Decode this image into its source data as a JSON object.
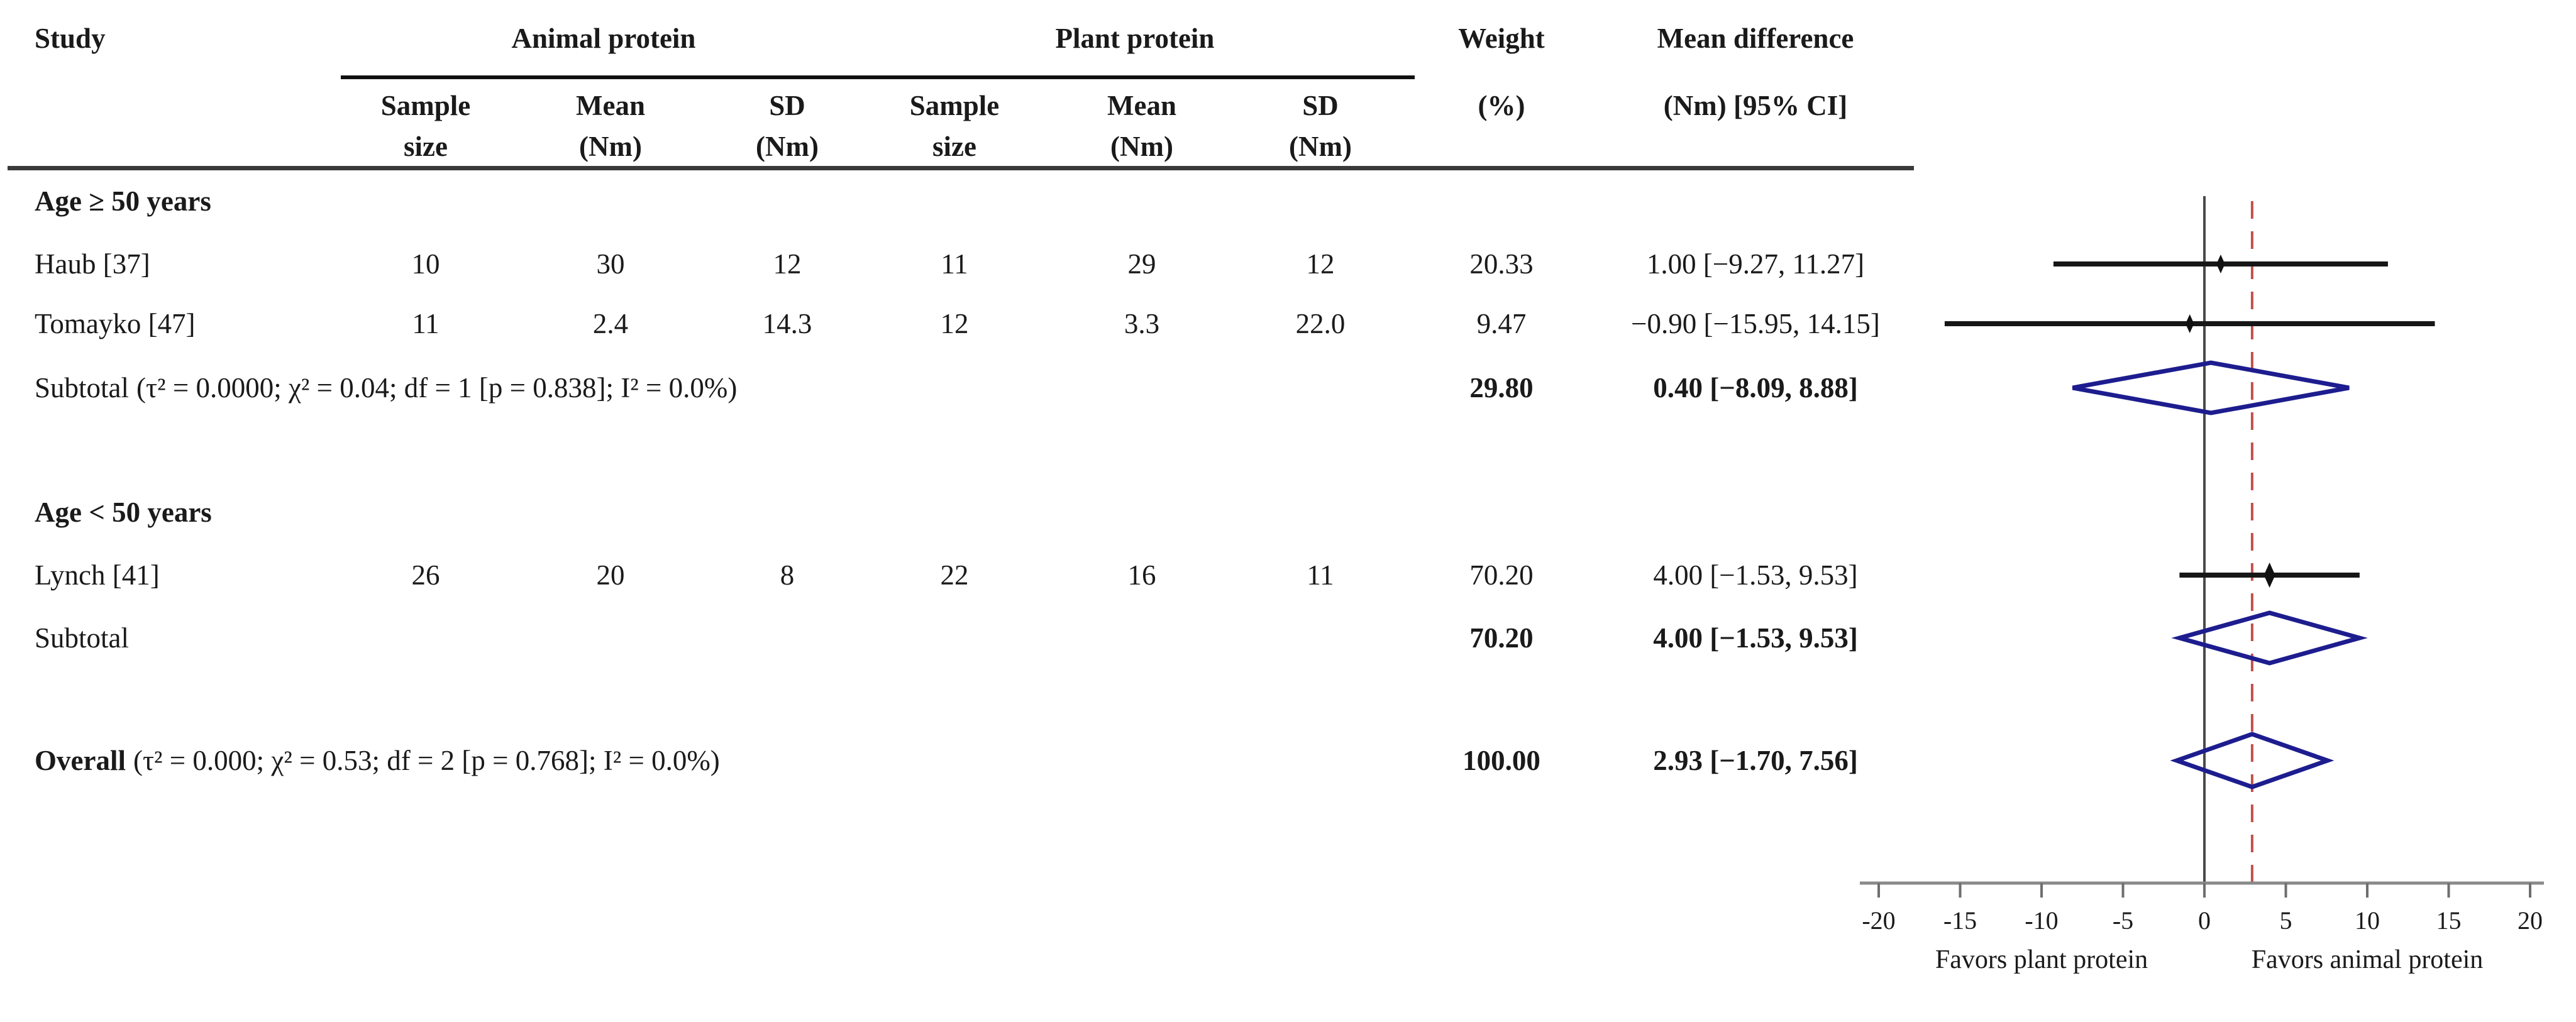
{
  "figure": {
    "kind": "meta-analysis forest plot",
    "colors": {
      "ci_line": "#161616",
      "marker": "#111111",
      "diamond_outline": "#1d1d8f",
      "reference_line": "#c0504d",
      "zero_line": "#4a4a4a",
      "axis": "#8a8a8a",
      "tick": "#6e6e6e",
      "text": "#1a1a1a"
    }
  },
  "table": {
    "header": {
      "study": "Study",
      "animal_group": "Animal protein",
      "plant_group": "Plant protein",
      "weight_line1": "Weight",
      "weight_line2": "(%)",
      "md_line1": "Mean difference",
      "md_line2": "(Nm) [95% CI]",
      "sub_sample": "Sample",
      "sub_size": "size",
      "sub_mean": "Mean",
      "sub_nm": "(Nm)",
      "sub_sd": "SD"
    },
    "rows": [
      {
        "type": "section",
        "label": "Age ≥ 50 years"
      },
      {
        "type": "study",
        "label": "Haub [37]",
        "animal_n": "10",
        "animal_mean": "30",
        "animal_sd": "12",
        "plant_n": "11",
        "plant_mean": "29",
        "plant_sd": "12",
        "weight": "20.33",
        "md": "1.00 [−9.27, 11.27]"
      },
      {
        "type": "study",
        "label": "Tomayko [47]",
        "animal_n": "11",
        "animal_mean": "2.4",
        "animal_sd": "14.3",
        "plant_n": "12",
        "plant_mean": "3.3",
        "plant_sd": "22.0",
        "weight": "9.47",
        "md": "−0.90 [−15.95, 14.15]"
      },
      {
        "type": "subtotal",
        "label": "Subtotal",
        "stats": "(τ² = 0.0000; χ² = 0.04; df = 1 [p = 0.838]; I² = 0.0%)",
        "weight": "29.80",
        "md": "0.40 [−8.09, 8.88]"
      },
      {
        "type": "section",
        "label": "Age < 50 years"
      },
      {
        "type": "study",
        "label": "Lynch [41]",
        "animal_n": "26",
        "animal_mean": "20",
        "animal_sd": "8",
        "plant_n": "22",
        "plant_mean": "16",
        "plant_sd": "11",
        "weight": "70.20",
        "md": "4.00 [−1.53, 9.53]"
      },
      {
        "type": "subtotal",
        "label": "Subtotal",
        "stats": "",
        "weight": "70.20",
        "md": "4.00 [−1.53, 9.53]"
      },
      {
        "type": "overall",
        "label": "Overall",
        "stats": "(τ² = 0.000; χ² = 0.53; df = 2 [p = 0.768]; I² = 0.0%)",
        "weight": "100.00",
        "md": "2.93 [−1.70, 7.56]"
      }
    ]
  },
  "chart_data": {
    "type": "forest",
    "x_axis": {
      "min": -20,
      "max": 20,
      "ticks": [
        -20,
        -15,
        -10,
        -5,
        0,
        5,
        10,
        15,
        20
      ],
      "label_left": "Favors plant protein",
      "label_right": "Favors animal protein"
    },
    "zero_line": 0,
    "reference_line": 2.93,
    "rows": [
      {
        "kind": "study",
        "label": "Haub [37]",
        "estimate": 1.0,
        "ci": [
          -9.27,
          11.27
        ],
        "weight_pct": 20.33
      },
      {
        "kind": "study",
        "label": "Tomayko [47]",
        "estimate": -0.9,
        "ci": [
          -15.95,
          14.15
        ],
        "weight_pct": 9.47
      },
      {
        "kind": "summary",
        "label": "Subtotal",
        "estimate": 0.4,
        "ci": [
          -8.09,
          8.88
        ],
        "weight_pct": 29.8
      },
      {
        "kind": "study",
        "label": "Lynch [41]",
        "estimate": 4.0,
        "ci": [
          -1.53,
          9.53
        ],
        "weight_pct": 70.2
      },
      {
        "kind": "summary",
        "label": "Subtotal",
        "estimate": 4.0,
        "ci": [
          -1.53,
          9.53
        ],
        "weight_pct": 70.2
      },
      {
        "kind": "summary",
        "label": "Overall",
        "estimate": 2.93,
        "ci": [
          -1.7,
          7.56
        ],
        "weight_pct": 100.0
      }
    ]
  }
}
